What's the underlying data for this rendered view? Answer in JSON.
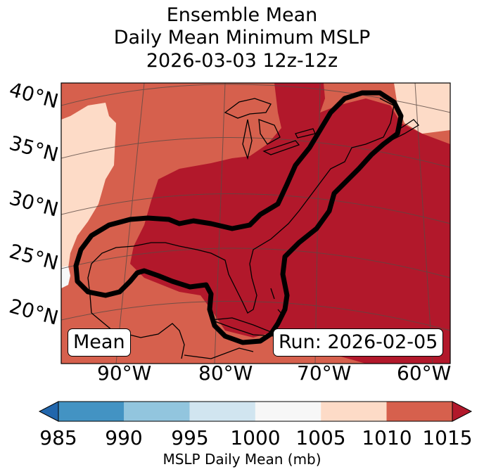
{
  "title": {
    "line1": "Ensemble Mean",
    "line2": "Daily Mean Minimum MSLP",
    "line3": "2026-03-03 12z-12z"
  },
  "map": {
    "lat_labels": [
      "40°N",
      "35°N",
      "30°N",
      "25°N",
      "20°N"
    ],
    "lon_labels": [
      "90°W",
      "80°W",
      "70°W",
      "60°W"
    ],
    "left_box": "Mean",
    "right_box": "Run: 2026-02-05",
    "colors": {
      "c1015": "#b2182b",
      "c1010": "#d6604d",
      "c1005": "#fddbc7",
      "c1000": "#f7f7f7",
      "contour": "#000000",
      "coast": "#000000"
    }
  },
  "colorbar": {
    "ticks": [
      "985",
      "990",
      "995",
      "1000",
      "1005",
      "1010",
      "1015"
    ],
    "label": "MSLP Daily Mean (mb)",
    "colors": [
      "#2166ac",
      "#4393c3",
      "#92c5de",
      "#d1e5f0",
      "#f7f7f7",
      "#fddbc7",
      "#d6604d",
      "#b2182b"
    ]
  }
}
